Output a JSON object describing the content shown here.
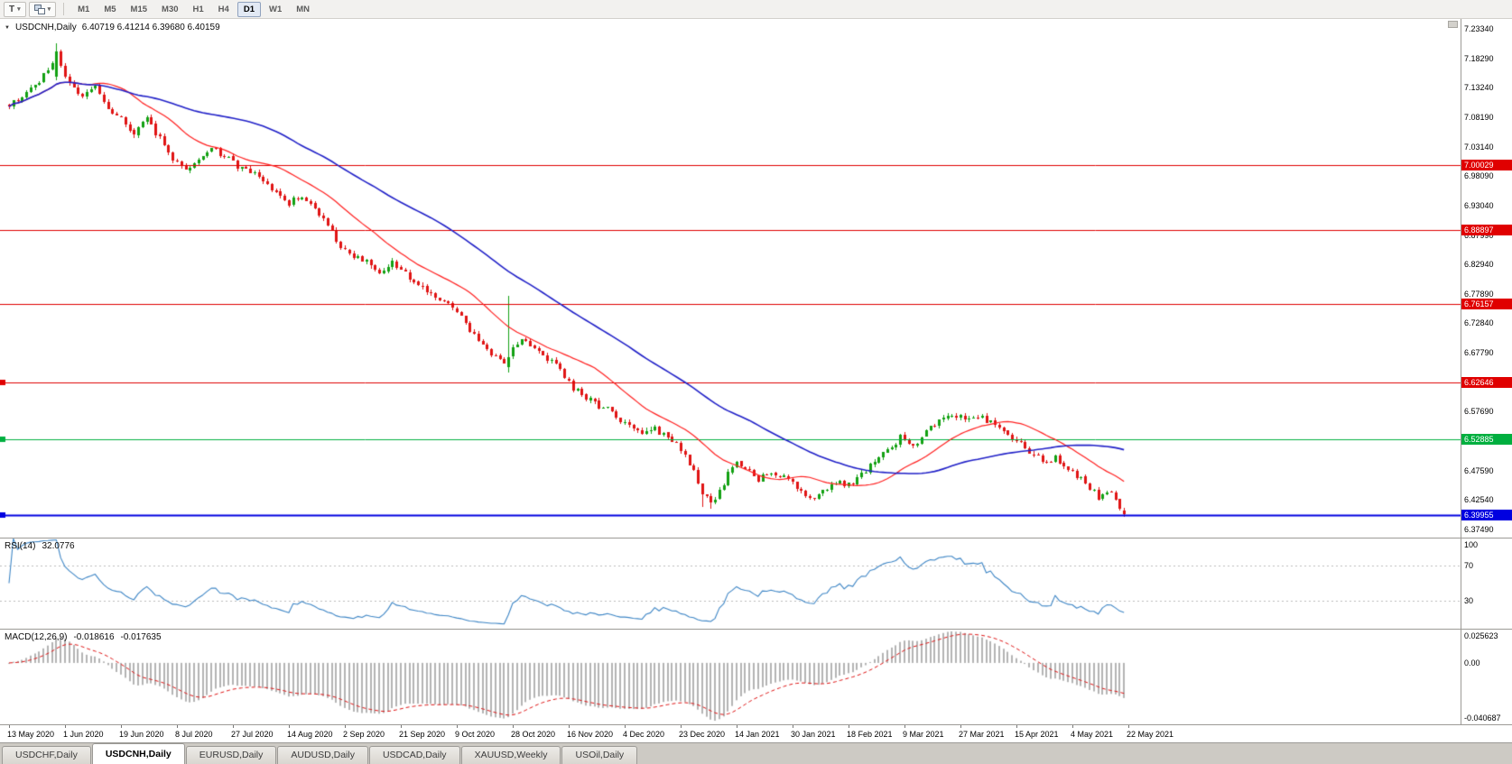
{
  "icons": {
    "chevron_down": "▾",
    "expand_arrow": "▼"
  },
  "toolbar": {
    "t_button_label": "T",
    "active_timeframe": "D1",
    "timeframes": [
      {
        "label": "M1"
      },
      {
        "label": "M5"
      },
      {
        "label": "M15"
      },
      {
        "label": "M30"
      },
      {
        "label": "H1"
      },
      {
        "label": "H4"
      },
      {
        "label": "D1"
      },
      {
        "label": "W1"
      },
      {
        "label": "MN"
      }
    ]
  },
  "chart_header": {
    "symbol_title": "USDCNH,Daily",
    "ohlc": "6.40719 6.41214 6.39680 6.40159"
  },
  "rsi_label": {
    "name": "RSI(14)",
    "value": "32.0776"
  },
  "macd_label": {
    "name": "MACD(12,26,9)",
    "macd_value": "-0.018616",
    "signal_value": "-0.017635"
  },
  "tabs": [
    {
      "label": "USDCHF,Daily",
      "active": false
    },
    {
      "label": "USDCNH,Daily",
      "active": true
    },
    {
      "label": "EURUSD,Daily",
      "active": false
    },
    {
      "label": "AUDUSD,Daily",
      "active": false
    },
    {
      "label": "USDCAD,Daily",
      "active": false
    },
    {
      "label": "XAUUSD,Weekly",
      "active": false
    },
    {
      "label": "USOil,Daily",
      "active": false
    }
  ],
  "chart_data": {
    "type": "candlestick",
    "symbol": "USDCNH",
    "timeframe": "Daily",
    "last_bar": {
      "open": 6.40719,
      "high": 6.41214,
      "low": 6.3968,
      "close": 6.40159
    },
    "bar_count": 260,
    "bars_per_label": 13,
    "noise_seed": 9,
    "candle_up_color": "#12A112",
    "candle_down_color": "#E01414",
    "close_path_anchors": [
      [
        0,
        7.103
      ],
      [
        3,
        7.118
      ],
      [
        6,
        7.135
      ],
      [
        9,
        7.163
      ],
      [
        11,
        7.186
      ],
      [
        13,
        7.152
      ],
      [
        15,
        7.128
      ],
      [
        17,
        7.113
      ],
      [
        20,
        7.134
      ],
      [
        23,
        7.095
      ],
      [
        26,
        7.083
      ],
      [
        29,
        7.053
      ],
      [
        32,
        7.078
      ],
      [
        35,
        7.046
      ],
      [
        38,
        7.012
      ],
      [
        41,
        6.996
      ],
      [
        44,
        7.006
      ],
      [
        47,
        7.028
      ],
      [
        50,
        7.016
      ],
      [
        53,
        6.997
      ],
      [
        56,
        6.988
      ],
      [
        59,
        6.972
      ],
      [
        62,
        6.951
      ],
      [
        65,
        6.936
      ],
      [
        68,
        6.946
      ],
      [
        71,
        6.924
      ],
      [
        74,
        6.896
      ],
      [
        77,
        6.862
      ],
      [
        80,
        6.843
      ],
      [
        83,
        6.832
      ],
      [
        86,
        6.818
      ],
      [
        89,
        6.831
      ],
      [
        92,
        6.815
      ],
      [
        95,
        6.792
      ],
      [
        98,
        6.776
      ],
      [
        101,
        6.767
      ],
      [
        104,
        6.748
      ],
      [
        107,
        6.716
      ],
      [
        110,
        6.692
      ],
      [
        113,
        6.668
      ],
      [
        115,
        6.66
      ],
      [
        117,
        6.686
      ],
      [
        119,
        6.705
      ],
      [
        122,
        6.688
      ],
      [
        125,
        6.667
      ],
      [
        128,
        6.648
      ],
      [
        131,
        6.618
      ],
      [
        134,
        6.601
      ],
      [
        137,
        6.587
      ],
      [
        140,
        6.576
      ],
      [
        143,
        6.556
      ],
      [
        146,
        6.54
      ],
      [
        149,
        6.551
      ],
      [
        152,
        6.536
      ],
      [
        155,
        6.521
      ],
      [
        157,
        6.503
      ],
      [
        159,
        6.472
      ],
      [
        161,
        6.44
      ],
      [
        163,
        6.422
      ],
      [
        165,
        6.438
      ],
      [
        167,
        6.468
      ],
      [
        169,
        6.488
      ],
      [
        171,
        6.478
      ],
      [
        174,
        6.462
      ],
      [
        177,
        6.476
      ],
      [
        180,
        6.462
      ],
      [
        183,
        6.448
      ],
      [
        186,
        6.43
      ],
      [
        189,
        6.438
      ],
      [
        192,
        6.458
      ],
      [
        195,
        6.452
      ],
      [
        198,
        6.47
      ],
      [
        201,
        6.49
      ],
      [
        204,
        6.509
      ],
      [
        207,
        6.532
      ],
      [
        210,
        6.52
      ],
      [
        213,
        6.541
      ],
      [
        216,
        6.562
      ],
      [
        219,
        6.574
      ],
      [
        222,
        6.563
      ],
      [
        225,
        6.571
      ],
      [
        228,
        6.558
      ],
      [
        231,
        6.543
      ],
      [
        234,
        6.528
      ],
      [
        237,
        6.508
      ],
      [
        240,
        6.492
      ],
      [
        243,
        6.497
      ],
      [
        246,
        6.478
      ],
      [
        249,
        6.462
      ],
      [
        251,
        6.447
      ],
      [
        253,
        6.432
      ],
      [
        255,
        6.443
      ],
      [
        257,
        6.424
      ],
      [
        259,
        6.4016
      ]
    ],
    "bar_overrides": [
      {
        "i": 11,
        "open": 7.152,
        "high": 7.209,
        "low": 7.146,
        "close": 7.195
      },
      {
        "i": 116,
        "open": 6.654,
        "high": 6.775,
        "low": 6.644,
        "close": 6.671
      },
      {
        "i": 161,
        "low": 6.414
      },
      {
        "i": 163,
        "low": 6.41
      },
      {
        "i": 259,
        "open": 6.40719,
        "high": 6.41214,
        "low": 6.3968,
        "close": 6.40159
      }
    ],
    "moving_averages": [
      {
        "period": 20,
        "color": "#FF2020",
        "width": 1.2
      },
      {
        "period": 56,
        "color": "#2121C8",
        "width": 1.6
      }
    ],
    "horizontal_lines": [
      {
        "label": "7.00029",
        "price": 7.00029,
        "color": "#E00000",
        "width": 1,
        "edge_marker": false
      },
      {
        "label": "6.88897",
        "price": 6.88897,
        "color": "#E00000",
        "width": 1,
        "edge_marker": false
      },
      {
        "label": "6.76157",
        "price": 6.76157,
        "color": "#E00000",
        "width": 1,
        "edge_marker": false
      },
      {
        "label": "6.62646",
        "price": 6.62646,
        "color": "#E00000",
        "width": 1,
        "edge_marker": true
      },
      {
        "label": "6.52885",
        "price": 6.52885,
        "color": "#00AF3F",
        "width": 1,
        "edge_marker": true
      },
      {
        "label": "6.39955",
        "price": 6.39955,
        "color": "#0000E0",
        "width": 2,
        "edge_marker": true
      }
    ],
    "price_axis_ticks": [
      "7.23340",
      "7.18290",
      "7.13240",
      "7.08190",
      "7.03140",
      "6.98090",
      "6.93040",
      "6.87990",
      "6.82940",
      "6.77890",
      "6.72840",
      "6.67790",
      "6.62740",
      "6.57690",
      "6.52640",
      "6.47590",
      "6.42540",
      "6.37490"
    ],
    "indicators": {
      "rsi": {
        "name": "RSI",
        "period": 14,
        "current_value": "32.0776",
        "color": "#3E86C6",
        "levels": [
          70,
          30
        ],
        "level_line_color": "#BBBBBB",
        "axis_ticks": [
          "100",
          "70",
          "30"
        ],
        "range": [
          0,
          100
        ]
      },
      "macd": {
        "name": "MACD",
        "fast_ema": 12,
        "slow_ema": 26,
        "signal_period": 9,
        "macd_value": "-0.018616",
        "signal_value": "-0.017635",
        "histogram_color": "#B4B4B4",
        "signal_color": "#E01414",
        "axis_ticks": [
          "0.025623",
          "0.00",
          "-0.040687"
        ]
      }
    },
    "date_labels": [
      "13 May 2020",
      "1 Jun 2020",
      "19 Jun 2020",
      "8 Jul 2020",
      "27 Jul 2020",
      "14 Aug 2020",
      "2 Sep 2020",
      "21 Sep 2020",
      "9 Oct 2020",
      "28 Oct 2020",
      "16 Nov 2020",
      "4 Dec 2020",
      "23 Dec 2020",
      "14 Jan 2021",
      "30 Jan 2021",
      "18 Feb 2021",
      "9 Mar 2021",
      "27 Mar 2021",
      "15 Apr 2021",
      "4 May 2021",
      "22 May 2021"
    ]
  }
}
